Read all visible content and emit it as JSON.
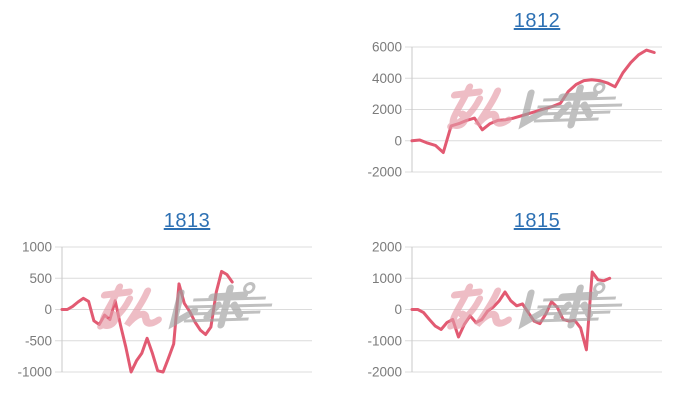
{
  "page": {
    "background": "#ffffff",
    "link_color": "#2d70b3"
  },
  "watermark": {
    "text": "みんレポ",
    "pink_part": "みん",
    "gray_part": "レポ",
    "pink_color": "#e59aa7",
    "gray_color": "#9f9f9f"
  },
  "chart_data": [
    {
      "type": "line",
      "title": "1812",
      "xlabel": "",
      "ylabel": "",
      "ylim": [
        -2000,
        6000
      ],
      "ytick_step": 2000,
      "ytick_labels": [
        "-2000",
        "0",
        "2000",
        "4000",
        "6000"
      ],
      "grid": true,
      "legend": null,
      "line_color": "#e25a72",
      "x_slots": 33,
      "values": [
        0,
        50,
        -150,
        -300,
        -750,
        950,
        1100,
        1300,
        1450,
        700,
        1100,
        1300,
        1350,
        1450,
        1600,
        1750,
        1900,
        2050,
        2200,
        2400,
        3150,
        3600,
        3850,
        3900,
        3850,
        3700,
        3450,
        4350,
        5000,
        5500,
        5800,
        5650
      ]
    },
    {
      "type": "line",
      "title": "1813",
      "xlabel": "",
      "ylabel": "",
      "ylim": [
        -1000,
        1000
      ],
      "ytick_step": 500,
      "ytick_labels": [
        "-1000",
        "-500",
        "0",
        "500",
        "1000"
      ],
      "grid": true,
      "legend": null,
      "line_color": "#e25a72",
      "x_slots": 48,
      "values": [
        0,
        0,
        50,
        120,
        180,
        130,
        -180,
        -240,
        -90,
        -160,
        140,
        -250,
        -600,
        -1000,
        -820,
        -700,
        -460,
        -700,
        -980,
        -1000,
        -780,
        -550,
        410,
        100,
        -30,
        -200,
        -330,
        -400,
        -280,
        280,
        610,
        560,
        440
      ]
    },
    {
      "type": "line",
      "title": "1815",
      "xlabel": "",
      "ylabel": "",
      "ylim": [
        -2000,
        2000
      ],
      "ytick_step": 1000,
      "ytick_labels": [
        "-2000",
        "-1000",
        "0",
        "1000",
        "2000"
      ],
      "grid": true,
      "legend": null,
      "line_color": "#e25a72",
      "x_slots": 44,
      "values": [
        0,
        0,
        -100,
        -320,
        -530,
        -640,
        -420,
        -320,
        -880,
        -480,
        -200,
        -420,
        -320,
        -50,
        80,
        280,
        560,
        280,
        120,
        180,
        -100,
        -370,
        -450,
        -150,
        250,
        70,
        -320,
        -370,
        -350,
        -590,
        -1290,
        1200,
        950,
        920,
        1000
      ]
    }
  ]
}
